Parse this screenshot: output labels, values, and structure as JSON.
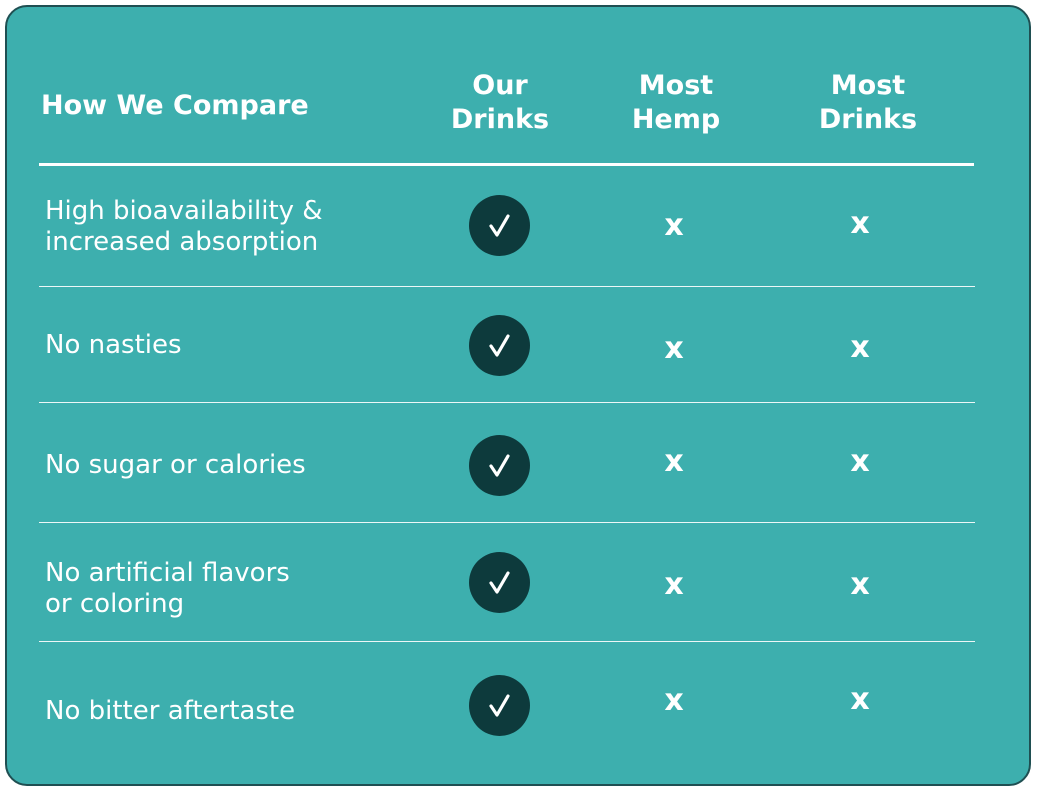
{
  "table": {
    "title": "How We Compare",
    "columns": [
      "Our\nDrinks",
      "Most\nHemp",
      "Most\nDrinks"
    ],
    "rows": [
      {
        "label": "High bioavailability &\nincreased absorption",
        "ours": "check",
        "hemp": "x",
        "drinks": "x"
      },
      {
        "label": "No nasties",
        "ours": "check",
        "hemp": "x",
        "drinks": "x"
      },
      {
        "label": "No sugar or calories",
        "ours": "check",
        "hemp": "x",
        "drinks": "x"
      },
      {
        "label": "No artificial flavors\nor coloring",
        "ours": "check",
        "hemp": "x",
        "drinks": "x"
      },
      {
        "label": "No bitter aftertaste",
        "ours": "check",
        "hemp": "x",
        "drinks": "x"
      }
    ],
    "x_glyph": "x"
  },
  "colors": {
    "background": "#3dafae",
    "check_circle": "#0d3a3c",
    "text": "#ffffff"
  },
  "icons": {
    "check": "checkmark-icon",
    "x": "x-mark-icon"
  }
}
